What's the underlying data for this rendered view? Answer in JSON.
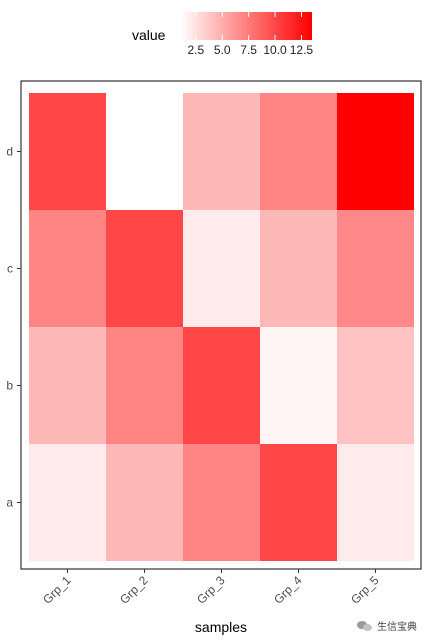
{
  "chart_data": {
    "type": "heatmap",
    "title": "",
    "xlabel": "samples",
    "ylabel": "",
    "x_categories": [
      "Grp_1",
      "Grp_2",
      "Grp_3",
      "Grp_4",
      "Grp_5"
    ],
    "y_categories": [
      "a",
      "b",
      "c",
      "d"
    ],
    "values": [
      {
        "y": "d",
        "row": [
          10.0,
          1.0,
          4.5,
          7.0,
          13.5
        ]
      },
      {
        "y": "c",
        "row": [
          7.0,
          10.0,
          2.0,
          4.5,
          6.8
        ]
      },
      {
        "y": "b",
        "row": [
          4.5,
          7.0,
          10.0,
          1.5,
          4.0
        ]
      },
      {
        "y": "a",
        "row": [
          2.0,
          4.5,
          7.0,
          10.0,
          2.0
        ]
      }
    ],
    "legend": {
      "title": "value",
      "position": "top",
      "ticks": [
        "2.5",
        "5.0",
        "7.5",
        "10.0",
        "12.5"
      ],
      "tick_values": [
        2.5,
        5.0,
        7.5,
        10.0,
        12.5
      ],
      "range": [
        1.0,
        13.5
      ]
    },
    "colors": {
      "low": "#ffffff",
      "high": "#ff0000"
    },
    "grid": false
  },
  "watermark": {
    "text": "生信宝典"
  }
}
